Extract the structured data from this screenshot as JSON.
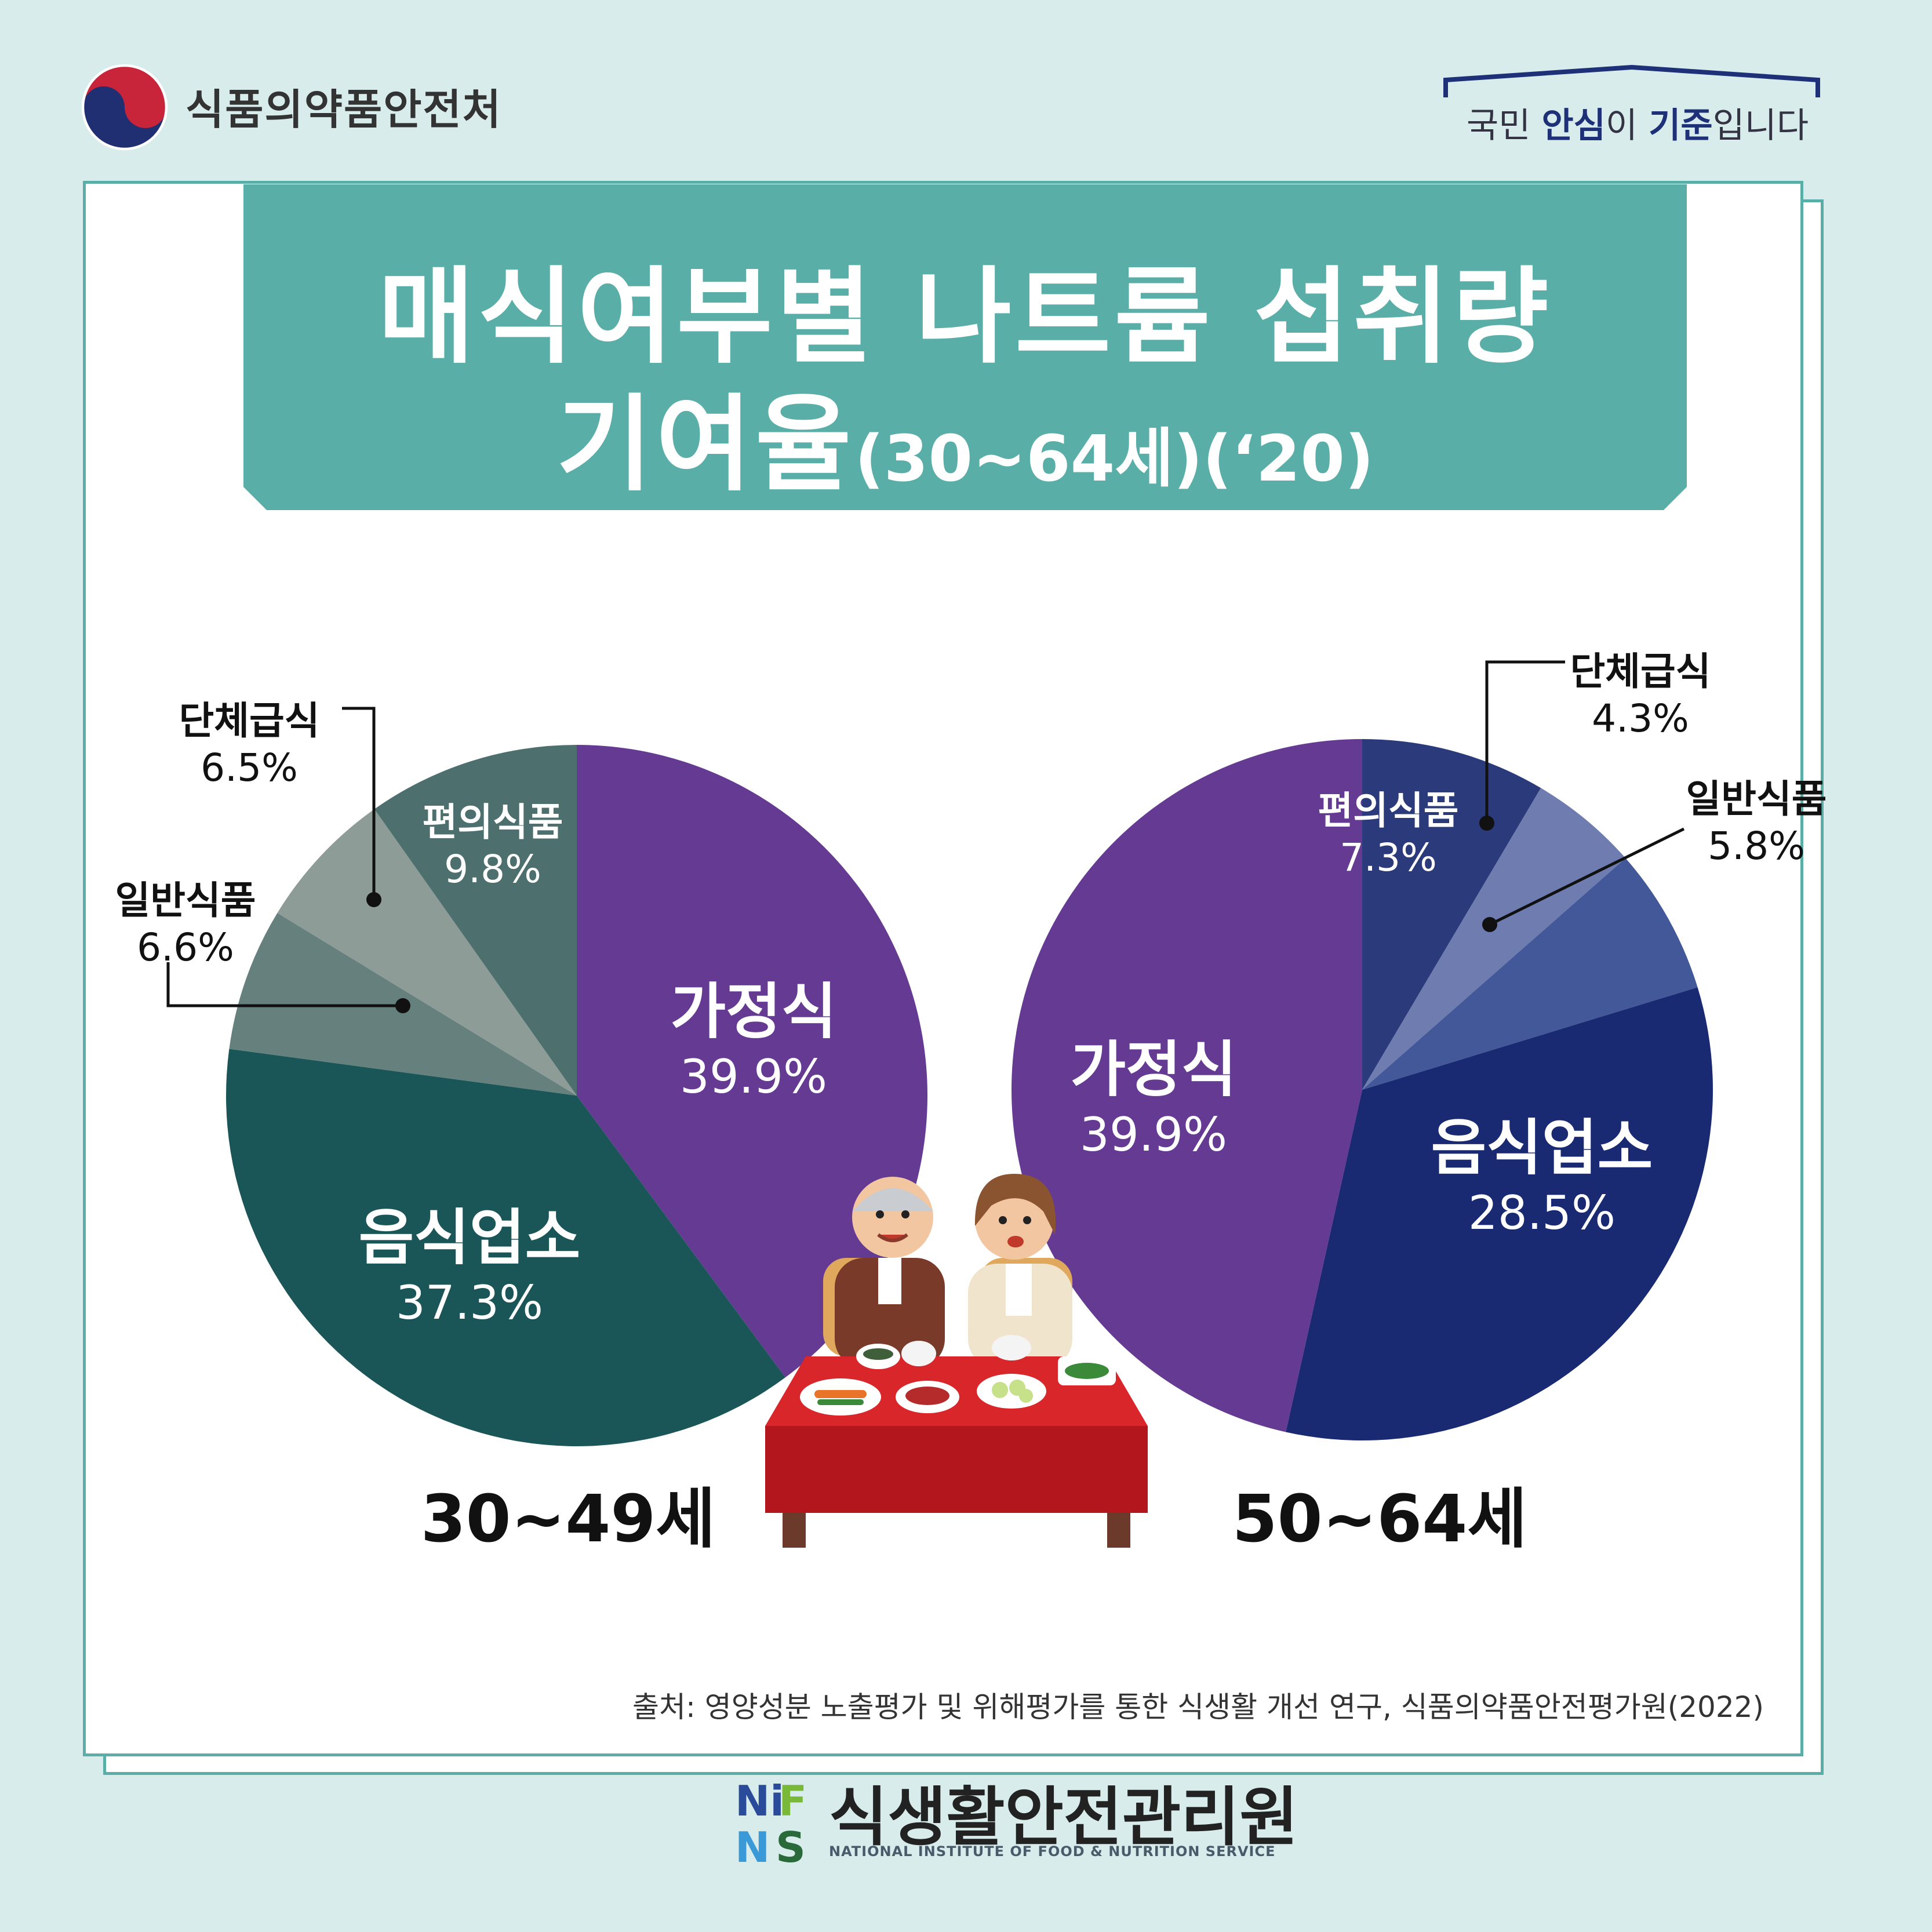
{
  "header": {
    "agency_name": "식품의약품안전처",
    "slogan_parts": [
      "국민 ",
      "안심",
      "이 ",
      "기준",
      "입니다"
    ]
  },
  "title": {
    "line1": "매식여부별 나트륨 섭취량",
    "line2_main": "기여율",
    "line2_sub": "(30~64세)(‘20)"
  },
  "colors": {
    "background": "#d8ecec",
    "teal": "#5aaea8",
    "purple": "#653a93",
    "dark_teal": "#1a5558",
    "navy": "#192a72"
  },
  "chart_data": [
    {
      "type": "pie",
      "group_label": "30~49세",
      "slices": [
        {
          "name": "가정식",
          "value": 39.9,
          "value_label": "39.9%",
          "color": "#653a93"
        },
        {
          "name": "음식업소",
          "value": 37.3,
          "value_label": "37.3%",
          "color": "#1a5558"
        },
        {
          "name": "일반식품",
          "value": 6.6,
          "value_label": "6.6%",
          "color": "#66807e"
        },
        {
          "name": "단체급식",
          "value": 6.5,
          "value_label": "6.5%",
          "color": "#8e9c98"
        },
        {
          "name": "편의식품",
          "value": 9.8,
          "value_label": "9.8%",
          "color": "#4d706e"
        }
      ]
    },
    {
      "type": "pie",
      "group_label": "50~64세",
      "slices": [
        {
          "name": "편의식품",
          "value": 7.3,
          "value_label": "7.3%",
          "color": "#2a3a7a"
        },
        {
          "name": "단체급식",
          "value": 4.3,
          "value_label": "4.3%",
          "color": "#6e7cb0"
        },
        {
          "name": "일반식품",
          "value": 5.8,
          "value_label": "5.8%",
          "color": "#435898"
        },
        {
          "name": "음식업소",
          "value": 28.5,
          "value_label": "28.5%",
          "color": "#192a72"
        },
        {
          "name": "가정식",
          "value": 39.9,
          "value_label": "39.9%",
          "color": "#653a93"
        }
      ]
    }
  ],
  "source": "출처: 영양성분 노출평가 및 위해평가를 통한 식생활 개선 연구, 식품의약품안전평가원(2022)",
  "footer": {
    "org_name": "식생활안전관리원",
    "org_english": "NATIONAL INSTITUTE OF FOOD & NUTRITION SERVICE",
    "logo_letters": "NIFNS"
  }
}
